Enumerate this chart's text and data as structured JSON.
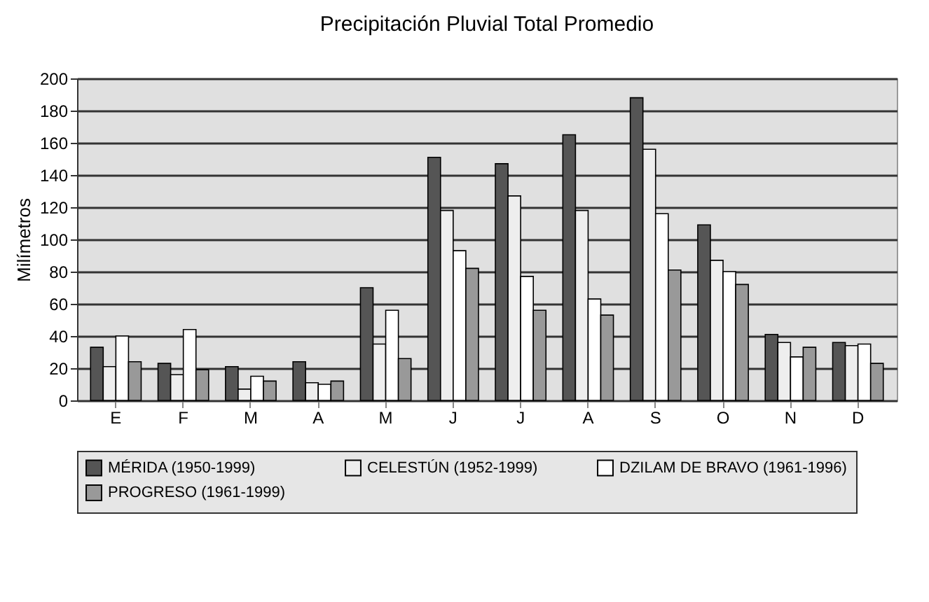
{
  "chart_data": {
    "type": "bar",
    "title": "Precipitación Pluvial Total Promedio",
    "ylabel": "Milímetros",
    "categories": [
      "E",
      "F",
      "M",
      "A",
      "M",
      "J",
      "J",
      "A",
      "S",
      "O",
      "N",
      "D"
    ],
    "series": [
      {
        "name": "MÉRIDA (1950-1999)",
        "color": "#555555",
        "values": [
          33,
          23,
          21,
          24,
          70,
          151,
          147,
          165,
          188,
          109,
          41,
          36
        ]
      },
      {
        "name": "CELESTÚN (1952-1999)",
        "color": "#eeeeee",
        "values": [
          21,
          16,
          7,
          11,
          35,
          118,
          127,
          118,
          156,
          87,
          36,
          34
        ]
      },
      {
        "name": "DZILAM DE BRAVO (1961-1996)",
        "color": "#ffffff",
        "values": [
          40,
          44,
          15,
          10,
          56,
          93,
          77,
          63,
          116,
          80,
          27,
          35
        ]
      },
      {
        "name": "PROGRESO (1961-1999)",
        "color": "#999999",
        "values": [
          24,
          19,
          12,
          12,
          26,
          82,
          56,
          53,
          81,
          72,
          33,
          23
        ]
      }
    ],
    "ylim": [
      0,
      200
    ],
    "yticks": [
      0,
      20,
      40,
      60,
      80,
      100,
      120,
      140,
      160,
      180,
      200
    ],
    "grid": "y",
    "legend": "bottom"
  }
}
